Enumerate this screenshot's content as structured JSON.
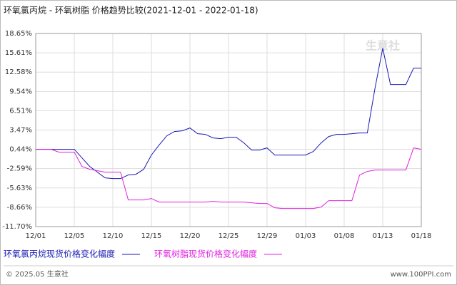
{
  "chart_data": {
    "type": "line",
    "title": "环氧氯丙烷 - 环氧树脂 价格趋势比较(2021-12-01 - 2022-01-18)",
    "categories": [
      "12/01",
      null,
      null,
      null,
      null,
      "12/05",
      null,
      null,
      null,
      null,
      "12/10",
      null,
      null,
      null,
      null,
      "12/15",
      null,
      null,
      null,
      null,
      "12/20",
      null,
      null,
      null,
      null,
      "12/25",
      null,
      null,
      null,
      null,
      "12/29",
      null,
      null,
      null,
      null,
      "01/03",
      null,
      null,
      null,
      null,
      "01/08",
      null,
      null,
      null,
      null,
      "01/13",
      null,
      null,
      null,
      null,
      "01/18"
    ],
    "series": [
      {
        "name": "环氧氯丙烷现货价格变化幅度",
        "color": "#1a1ab4",
        "values": [
          0.44,
          0.44,
          0.44,
          0.44,
          0.44,
          0.44,
          -0.9,
          -2.25,
          -3.14,
          -4.04,
          -4.15,
          -4.15,
          -3.59,
          -3.48,
          -2.7,
          -0.46,
          1.11,
          2.57,
          3.24,
          3.35,
          3.8,
          2.9,
          2.79,
          2.23,
          2.12,
          2.34,
          2.34,
          1.45,
          0.33,
          0.33,
          0.66,
          -0.46,
          -0.46,
          -0.46,
          -0.46,
          -0.46,
          0.1,
          1.45,
          2.46,
          2.79,
          2.79,
          2.9,
          3.02,
          3.02,
          10.07,
          16.34,
          10.63,
          10.63,
          10.63,
          13.21,
          13.21
        ]
      },
      {
        "name": "环氧树脂现货价格变化幅度",
        "color": "#e020e0",
        "values": [
          0.44,
          0.44,
          0.44,
          0.0,
          0.0,
          0.0,
          -2.25,
          -2.7,
          -2.92,
          -3.14,
          -3.14,
          -3.14,
          -7.51,
          -7.51,
          -7.51,
          -7.29,
          -7.85,
          -7.85,
          -7.85,
          -7.85,
          -7.85,
          -7.85,
          -7.85,
          -7.73,
          -7.85,
          -7.85,
          -7.85,
          -7.85,
          -7.96,
          -8.07,
          -8.07,
          -8.74,
          -8.85,
          -8.85,
          -8.85,
          -8.85,
          -8.85,
          -8.63,
          -7.62,
          -7.62,
          -7.62,
          -7.62,
          -3.59,
          -3.03,
          -2.81,
          -2.81,
          -2.81,
          -2.81,
          -2.81,
          0.66,
          0.44
        ]
      }
    ],
    "ylim": [
      -11.7,
      18.65
    ],
    "yticks": [
      {
        "value": 18.65,
        "label": "18.65%"
      },
      {
        "value": 15.61,
        "label": "15.61%"
      },
      {
        "value": 12.58,
        "label": "12.58%"
      },
      {
        "value": 9.54,
        "label": "9.54%"
      },
      {
        "value": 6.51,
        "label": "6.51%"
      },
      {
        "value": 3.47,
        "label": "3.47%"
      },
      {
        "value": 0.44,
        "label": "0.44%"
      },
      {
        "value": -2.59,
        "label": "-2.59%"
      },
      {
        "value": -5.63,
        "label": "-5.63%"
      },
      {
        "value": -8.66,
        "label": "-8.66%"
      },
      {
        "value": -11.7,
        "label": "-11.70%"
      }
    ],
    "grid": true,
    "watermark": "生意社",
    "footer_left": "© 2025.05 生意社",
    "footer_right": "www.100PPI.com"
  }
}
